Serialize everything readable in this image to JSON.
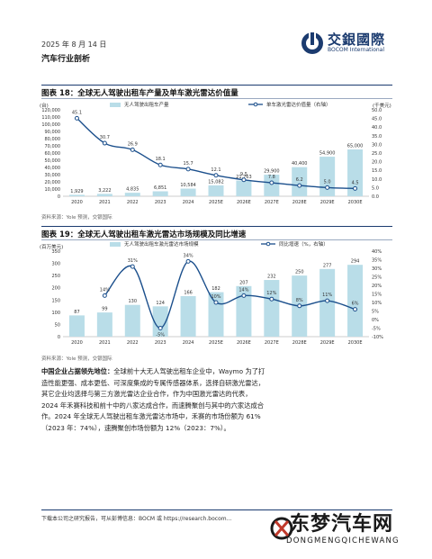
{
  "header": {
    "date": "2025 年 8 月 14 日",
    "section": "汽车行业剖析",
    "logo_cn": "交銀國際",
    "logo_en": "BOCOM International"
  },
  "figure18": {
    "title": "图表 18：全球无人驾驶出租车产量及单车激光雷达价值量",
    "source": "资料来源：Yole 预测，交银国际"
  },
  "figure19": {
    "title": "图表 19：全球无人驾驶出租车激光雷达市场规模及同比增速",
    "source": "资料来源：Yole 预测，交银国际"
  },
  "paragraph": {
    "lead": "中国企业占据领先地位：",
    "line1": "全球前十大无人驾驶出租车企业中，Waymo 为了打",
    "line2": "造性能更强、成本更低、可深度集成的专属传感器体系，选择自研激光雷达，",
    "line3": "其它企业均选择与第三方激光雷达企业合作，作为中国激光雷达的代表，",
    "line4": "2024 年禾赛科技和前十中的八家达成合作，而速腾聚创与其中的六家达成合",
    "line5": "作。2024 年全球无人驾驶出租车激光雷达市场中，禾赛的市场份额为 61%",
    "line6": "（2023 年：74%），速腾聚创市场份额为 12%（2023：7%）。"
  },
  "footer": {
    "text": "下载本公司之研究报告，可从彭博信息：BOCM 或 https://research.bocom..."
  },
  "watermark": {
    "cn": "东梦汽车网",
    "en": "DONGMENGQICHEWANG"
  },
  "chart_data": [
    {
      "type": "bar",
      "title": "图表 18：全球无人驾驶出租车产量及单车激光雷达价值量",
      "categories": [
        "2020",
        "2021",
        "2022",
        "2023",
        "2024",
        "2025E",
        "2026E",
        "2027E",
        "2028E",
        "2029E",
        "2030E"
      ],
      "series": [
        {
          "name": "无人驾驶出租车产量",
          "type": "bar",
          "values": [
            1929,
            3222,
            4835,
            6851,
            10584,
            15082,
            21763,
            29900,
            40400,
            54900,
            65000
          ],
          "labels": [
            "1,929",
            "3,222",
            "4,835",
            "6,851",
            "10,584",
            "15,082",
            "21,763",
            "29,900",
            "40,400",
            "54,900",
            "65,000"
          ],
          "color": "#b9dde8"
        },
        {
          "name": "单车激光雷达价值量（右轴）",
          "type": "line",
          "values": [
            45.1,
            30.7,
            26.9,
            18.1,
            15.7,
            12.1,
            9.5,
            7.8,
            6.2,
            5.0,
            4.5
          ],
          "labels": [
            "45.1",
            "30.7",
            "26.9",
            "18.1",
            "15.7",
            "12.1",
            "9.5",
            "7.8",
            "6.2",
            "5.0",
            "4.5"
          ],
          "color": "#1b4f8c"
        }
      ],
      "y_left": {
        "unit": "(台)",
        "range": [
          0,
          120000
        ],
        "ticks": [
          "0",
          "10,000",
          "20,000",
          "30,000",
          "40,000",
          "50,000",
          "60,000",
          "70,000",
          "80,000",
          "90,000",
          "100,000",
          "110,000",
          "120,000"
        ]
      },
      "y_right": {
        "unit": "(千美元)",
        "range": [
          0,
          50
        ],
        "ticks": [
          "0.0",
          "5.0",
          "10.0",
          "15.0",
          "20.0",
          "25.0",
          "30.0",
          "35.0",
          "40.0",
          "45.0",
          "50.0"
        ]
      }
    },
    {
      "type": "bar",
      "title": "图表 19：全球无人驾驶出租车激光雷达市场规模及同比增速",
      "categories": [
        "2020",
        "2021",
        "2022",
        "2023",
        "2024",
        "2025E",
        "2026E",
        "2027E",
        "2028E",
        "2029E",
        "2030E"
      ],
      "series": [
        {
          "name": "无人驾驶出租车激光雷达市场规模",
          "type": "bar",
          "values": [
            87,
            99,
            130,
            124,
            166,
            182,
            207,
            232,
            250,
            277,
            294
          ],
          "labels": [
            "87",
            "99",
            "130",
            "124",
            "166",
            "182",
            "207",
            "232",
            "250",
            "277",
            "294"
          ],
          "color": "#b9dde8"
        },
        {
          "name": "同比增速（%，右轴）",
          "type": "line",
          "values": [
            null,
            14,
            31,
            -5,
            34,
            10,
            14,
            12,
            8,
            11,
            6
          ],
          "labels": [
            "",
            "14%",
            "31%",
            "-5%",
            "34%",
            "10%",
            "14%",
            "12%",
            "8%",
            "11%",
            "6%"
          ],
          "color": "#1b4f8c"
        }
      ],
      "y_left": {
        "unit": "(百万美元)",
        "range": [
          0,
          350
        ],
        "ticks": [
          "0",
          "50",
          "100",
          "150",
          "200",
          "250",
          "300",
          "350"
        ]
      },
      "y_right": {
        "unit": "",
        "range": [
          -10,
          40
        ],
        "ticks": [
          "-10%",
          "-5%",
          "0%",
          "5%",
          "10%",
          "15%",
          "20%",
          "25%",
          "30%",
          "35%",
          "40%"
        ]
      }
    }
  ]
}
